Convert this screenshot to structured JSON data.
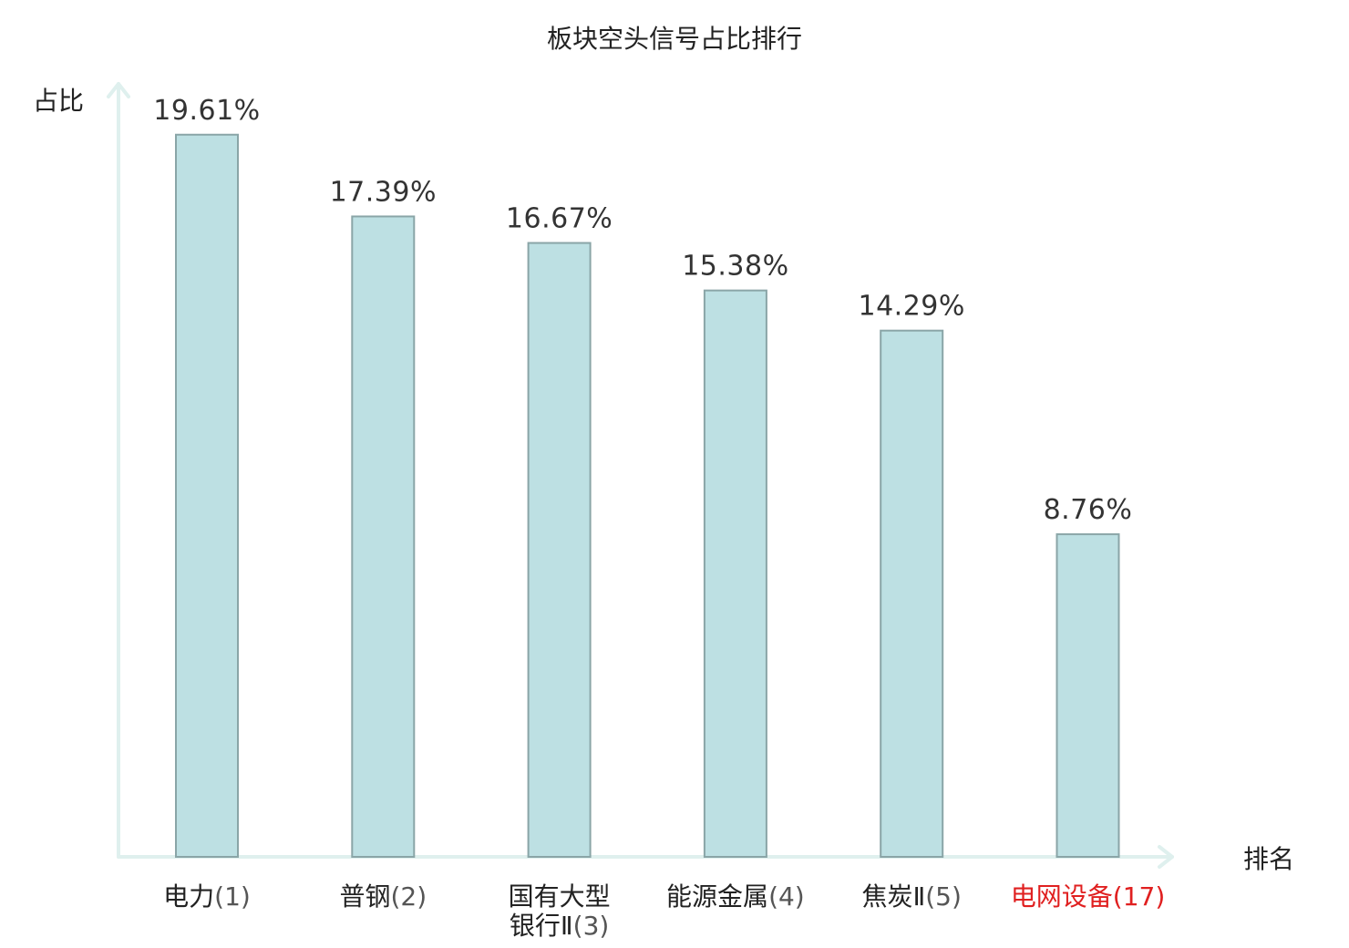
{
  "chart_data": {
    "type": "bar",
    "title": "板块空头信号占比排行",
    "ylabel": "占比",
    "xlabel": "排名",
    "ylim": [
      0,
      20.5
    ],
    "grid": false,
    "legend": false,
    "categories": [
      {
        "name": "电力",
        "rank": "(1)",
        "lines": [
          "电力"
        ],
        "highlight": false
      },
      {
        "name": "普钢",
        "rank": "(2)",
        "lines": [
          "普钢"
        ],
        "highlight": false
      },
      {
        "name": "国有大型银行Ⅱ",
        "rank": "(3)",
        "lines": [
          "国有大型",
          "银行Ⅱ"
        ],
        "highlight": false
      },
      {
        "name": "能源金属",
        "rank": "(4)",
        "lines": [
          "能源金属"
        ],
        "highlight": false
      },
      {
        "name": "焦炭Ⅱ",
        "rank": "(5)",
        "lines": [
          "焦炭Ⅱ"
        ],
        "highlight": false
      },
      {
        "name": "电网设备",
        "rank": "(17)",
        "lines": [
          "电网设备"
        ],
        "highlight": true
      }
    ],
    "values": [
      19.61,
      17.39,
      16.67,
      15.38,
      14.29,
      8.76
    ],
    "value_labels": [
      "19.61%",
      "17.39%",
      "16.67%",
      "15.38%",
      "14.29%",
      "8.76%"
    ],
    "colors": {
      "bar_fill": "#bde0e3",
      "bar_stroke": "#8aa5a7",
      "axis": "#dff0ee",
      "highlight_label": "#e02020"
    }
  }
}
